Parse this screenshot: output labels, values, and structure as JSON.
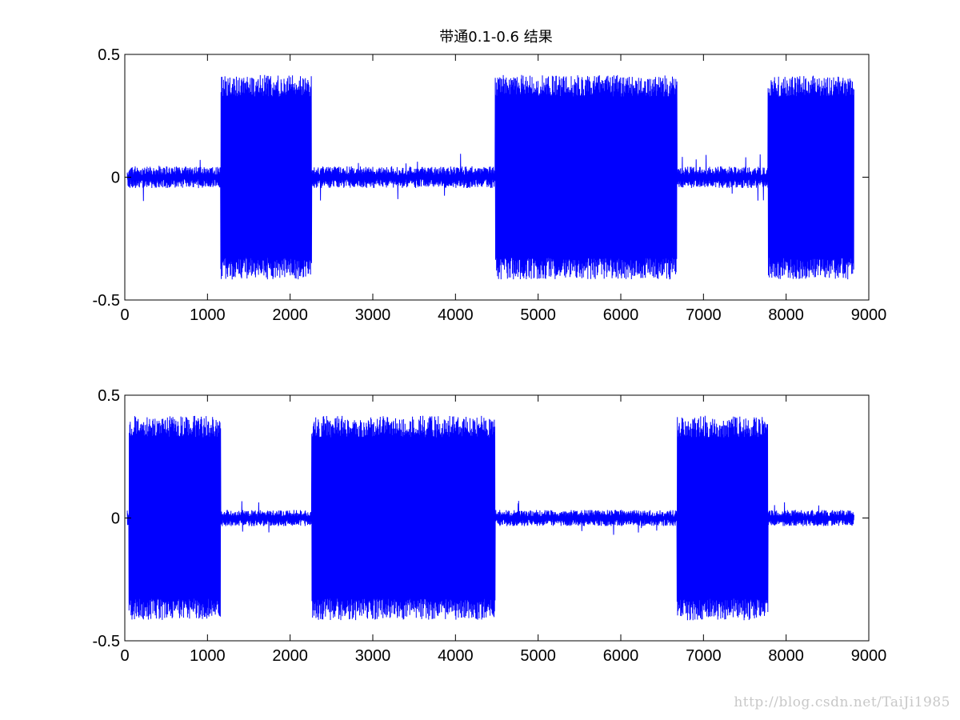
{
  "chart_data": [
    {
      "type": "line",
      "title": "带通0.1-0.6 结果",
      "xlabel": "",
      "ylabel": "",
      "xlim": [
        0,
        9000
      ],
      "ylim": [
        -0.5,
        0.5
      ],
      "xticks": [
        0,
        1000,
        2000,
        3000,
        4000,
        5000,
        6000,
        7000,
        8000,
        9000
      ],
      "xtick_labels": [
        "0",
        "1000",
        "2000",
        "3000",
        "4000",
        "5000",
        "6000",
        "7000",
        "8000",
        "9000"
      ],
      "yticks": [
        -0.5,
        0,
        0.5
      ],
      "ytick_labels": [
        "-0.5",
        "0",
        "0.5"
      ],
      "grid": false,
      "line_color": "#0000ff",
      "x_range": [
        30,
        8820
      ],
      "noise_amplitude": 0.04,
      "bursts": [
        {
          "start": 1160,
          "end": 2260,
          "amplitude": 0.4
        },
        {
          "start": 4480,
          "end": 6680,
          "amplitude": 0.4
        },
        {
          "start": 7780,
          "end": 8820,
          "amplitude": 0.4
        }
      ]
    },
    {
      "type": "line",
      "title": "",
      "xlabel": "",
      "ylabel": "",
      "xlim": [
        0,
        9000
      ],
      "ylim": [
        -0.5,
        0.5
      ],
      "xticks": [
        0,
        1000,
        2000,
        3000,
        4000,
        5000,
        6000,
        7000,
        8000,
        9000
      ],
      "xtick_labels": [
        "0",
        "1000",
        "2000",
        "3000",
        "4000",
        "5000",
        "6000",
        "7000",
        "8000",
        "9000"
      ],
      "yticks": [
        -0.5,
        0,
        0.5
      ],
      "ytick_labels": [
        "-0.5",
        "0",
        "0.5"
      ],
      "grid": false,
      "line_color": "#0000ff",
      "x_range": [
        30,
        8820
      ],
      "noise_amplitude": 0.03,
      "bursts": [
        {
          "start": 50,
          "end": 1160,
          "amplitude": 0.4
        },
        {
          "start": 2260,
          "end": 4480,
          "amplitude": 0.4
        },
        {
          "start": 6680,
          "end": 7780,
          "amplitude": 0.4
        }
      ]
    }
  ],
  "watermark": "http://blog.csdn.net/TaiJi1985"
}
